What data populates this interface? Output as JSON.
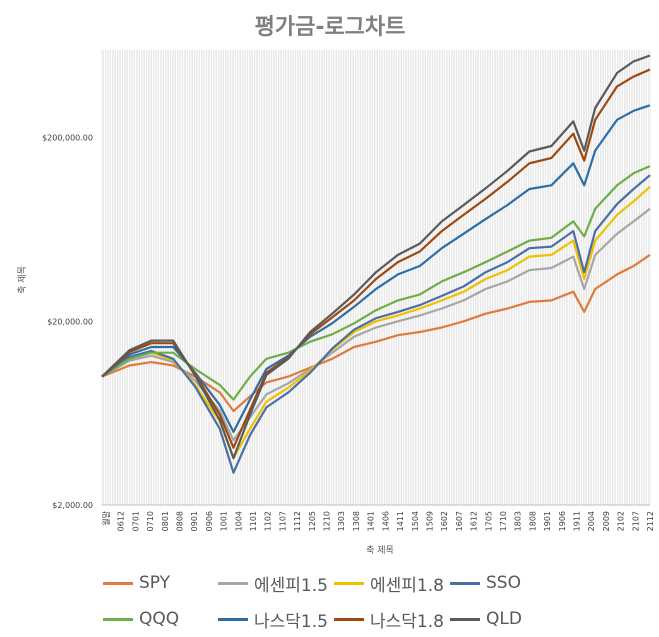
{
  "chart_data": {
    "type": "line",
    "title": "평가금-로그차트",
    "xlabel": "축 제목",
    "ylabel": "축 제목",
    "y_scale": "log",
    "ylim": [
      2000,
      600000
    ],
    "y_ticks": [
      2000,
      20000,
      200000
    ],
    "y_tick_labels": [
      "$2,000.00",
      "$20,000.00",
      "$200,000.00"
    ],
    "x_tick_labels": [
      "월말",
      "0612",
      "0701",
      "0710",
      "0801",
      "0808",
      "0901",
      "0906",
      "1001",
      "1004",
      "1101",
      "1102",
      "1107",
      "1112",
      "1205",
      "1210",
      "1303",
      "1308",
      "1401",
      "1406",
      "1411",
      "1504",
      "1509",
      "1602",
      "1607",
      "1612",
      "1705",
      "1710",
      "1803",
      "1808",
      "1901",
      "1906",
      "1911",
      "2004",
      "2009",
      "2102",
      "2107",
      "2112"
    ],
    "grid": true,
    "legend_position": "bottom",
    "colors": {
      "SPY": "#e07b39",
      "에센피1.5": "#a6a6a6",
      "에센피1.8": "#f0c000",
      "SSO": "#4a6fa5",
      "QQQ": "#70ad47",
      "나스닥1.5": "#2e6ea6",
      "나스닥1.8": "#9e480e",
      "QLD": "#5a5a5a"
    },
    "x_points": [
      0,
      0.05,
      0.09,
      0.13,
      0.17,
      0.215,
      0.24,
      0.27,
      0.3,
      0.34,
      0.38,
      0.42,
      0.46,
      0.5,
      0.54,
      0.58,
      0.62,
      0.66,
      0.7,
      0.74,
      0.78,
      0.82,
      0.86,
      0.88,
      0.9,
      0.94,
      0.97,
      1.0
    ],
    "series": [
      {
        "name": "SPY",
        "values": [
          10000,
          11500,
          12000,
          11500,
          10000,
          8200,
          6500,
          7800,
          9300,
          10000,
          11200,
          12500,
          14500,
          15500,
          16800,
          17500,
          18500,
          20000,
          22000,
          23500,
          25500,
          26000,
          29000,
          22500,
          30000,
          36000,
          40000,
          46000
        ]
      },
      {
        "name": "에센피1.5",
        "values": [
          10000,
          12200,
          13000,
          12000,
          9500,
          6500,
          4500,
          6000,
          8000,
          9200,
          11000,
          13500,
          16500,
          18500,
          20000,
          21500,
          23500,
          26000,
          30000,
          33000,
          38000,
          39000,
          45000,
          30000,
          46000,
          60000,
          70000,
          82000
        ]
      },
      {
        "name": "에센피1.8",
        "values": [
          10000,
          12600,
          13500,
          12300,
          9000,
          5700,
          3600,
          5200,
          7300,
          8700,
          10800,
          14000,
          17500,
          20000,
          21500,
          23500,
          26000,
          29000,
          34000,
          38000,
          45000,
          46000,
          55000,
          34000,
          55000,
          76000,
          90000,
          108000
        ]
      },
      {
        "name": "SSO",
        "values": [
          10000,
          12800,
          13800,
          12500,
          8800,
          5200,
          3000,
          4800,
          6800,
          8200,
          10500,
          14200,
          18000,
          20800,
          22500,
          24500,
          27500,
          31000,
          37000,
          42000,
          50000,
          51000,
          62000,
          37000,
          62000,
          87000,
          105000,
          125000
        ]
      },
      {
        "name": "QQQ",
        "values": [
          10000,
          12500,
          13500,
          13500,
          11000,
          9000,
          7500,
          10000,
          12500,
          13500,
          15500,
          17000,
          19500,
          23000,
          26000,
          28000,
          33000,
          37000,
          42000,
          48000,
          55000,
          57000,
          70000,
          58000,
          82000,
          110000,
          128000,
          140000
        ]
      },
      {
        "name": "나스닥1.5",
        "values": [
          10000,
          13200,
          14500,
          14500,
          10500,
          7000,
          5000,
          7500,
          11000,
          13000,
          16500,
          19500,
          24000,
          30000,
          36000,
          40000,
          50000,
          60000,
          72000,
          86000,
          105000,
          110000,
          145000,
          110000,
          170000,
          250000,
          280000,
          300000
        ]
      },
      {
        "name": "나스닥1.8",
        "values": [
          10000,
          13600,
          15200,
          15200,
          10300,
          6200,
          4100,
          6600,
          10500,
          12700,
          17000,
          21000,
          26000,
          34000,
          42000,
          48000,
          62000,
          76000,
          93000,
          115000,
          145000,
          155000,
          210000,
          150000,
          250000,
          380000,
          430000,
          470000
        ]
      },
      {
        "name": "QLD",
        "values": [
          10000,
          13900,
          15700,
          15700,
          10100,
          5800,
          3600,
          6200,
          10200,
          12500,
          17500,
          22000,
          28000,
          37000,
          46000,
          53000,
          70000,
          86000,
          106000,
          132000,
          168000,
          180000,
          245000,
          170000,
          290000,
          450000,
          520000,
          560000
        ]
      }
    ]
  },
  "legend_items": [
    {
      "label": "SPY"
    },
    {
      "label": "에센피1.5"
    },
    {
      "label": "에센피1.8"
    },
    {
      "label": "SSO"
    },
    {
      "label": "QQQ"
    },
    {
      "label": "나스닥1.5"
    },
    {
      "label": "나스닥1.8"
    },
    {
      "label": "QLD"
    }
  ]
}
